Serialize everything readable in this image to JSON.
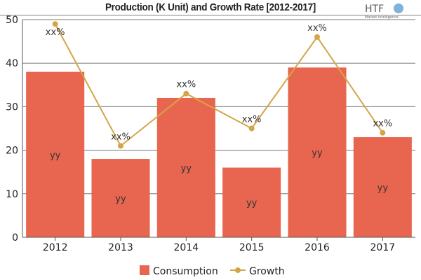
{
  "chart_data": {
    "type": "bar",
    "title": "Production (K Unit) and Growth Rate [2012-2017]",
    "categories": [
      "2012",
      "2013",
      "2014",
      "2015",
      "2016",
      "2017"
    ],
    "ylim": [
      0,
      50
    ],
    "yticks": [
      0,
      10,
      20,
      30,
      40,
      50
    ],
    "grid": true,
    "legend_placement": "bottom",
    "series": [
      {
        "name": "Consumption",
        "type": "bar",
        "values": [
          38,
          18,
          32,
          16,
          39,
          23
        ],
        "labels": [
          "yy",
          "yy",
          "yy",
          "yy",
          "yy",
          "yy"
        ],
        "color": "#e8664f"
      },
      {
        "name": "Growth",
        "type": "line",
        "values": [
          49,
          21,
          33,
          25,
          46,
          24
        ],
        "labels": [
          "xx%",
          "xx%",
          "xx%",
          "xx%",
          "xx%",
          "xx%"
        ],
        "color": "#d4a548"
      }
    ]
  },
  "logo": {
    "text": "HTF",
    "subtext": "Market Intelligence"
  }
}
